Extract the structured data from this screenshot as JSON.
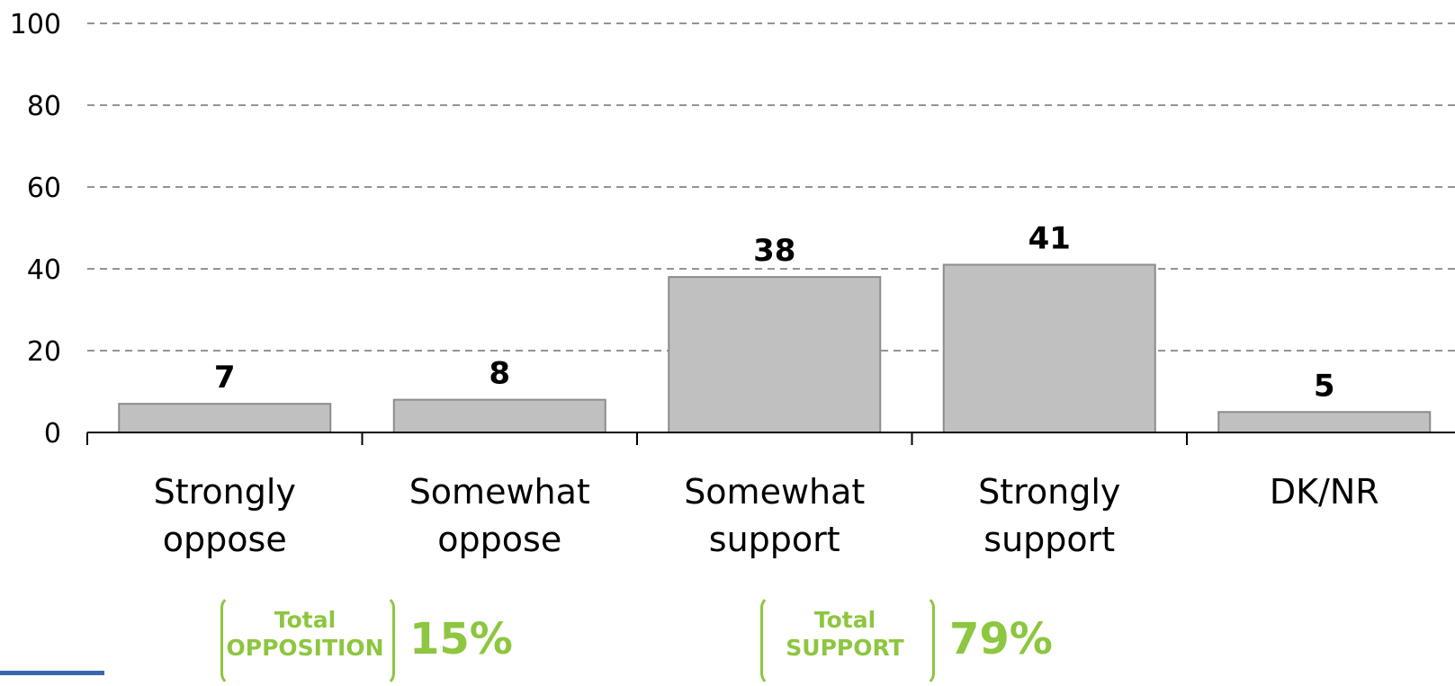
{
  "chart_data": {
    "type": "bar",
    "categories": [
      [
        "Strongly",
        "oppose"
      ],
      [
        "Somewhat",
        "oppose"
      ],
      [
        "Somewhat",
        "support"
      ],
      [
        "Strongly",
        "support"
      ],
      [
        "DK/NR"
      ]
    ],
    "values": [
      7,
      8,
      38,
      41,
      5
    ],
    "data_labels": [
      "7",
      "8",
      "38",
      "41",
      "5"
    ],
    "ylim": [
      0,
      100
    ],
    "yticks": [
      0,
      20,
      40,
      60,
      80,
      100
    ],
    "grid": true,
    "bar_color": "#c0c0c0",
    "title": "",
    "xlabel": "",
    "ylabel": ""
  },
  "totals": {
    "opposition": {
      "label_line1": "Total",
      "label_line2": "OPPOSITION",
      "value": "15%"
    },
    "support": {
      "label_line1": "Total",
      "label_line2": "SUPPORT",
      "value": "79%"
    }
  },
  "colors": {
    "accent": "#8dc63f",
    "axis": "#000000"
  }
}
